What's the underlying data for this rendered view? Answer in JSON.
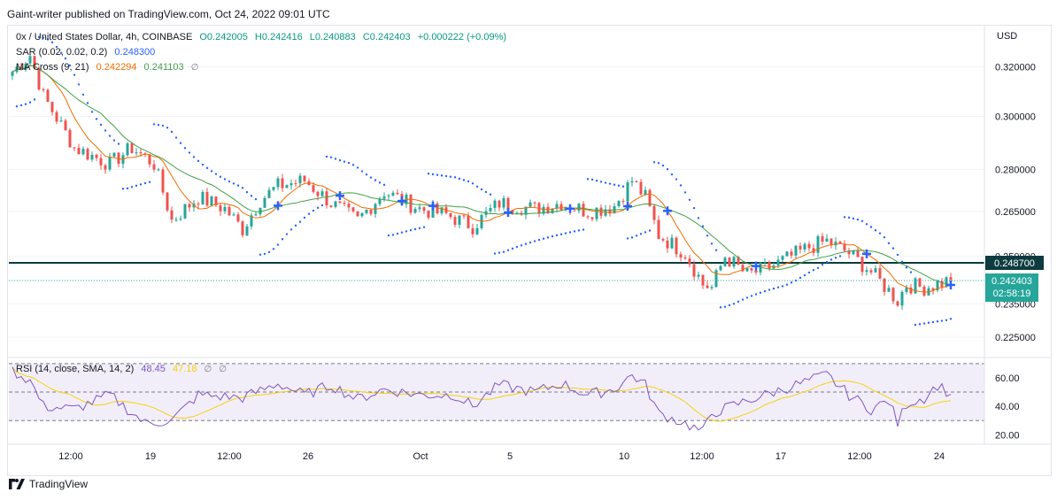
{
  "header": {
    "publisher": "Gaint-writer published on TradingView.com, Oct 24, 2022 09:01 UTC"
  },
  "legend": {
    "symbol": "0x / United States Dollar, 4h, COINBASE",
    "open": "O0.242005",
    "high": "H0.242416",
    "low": "L0.240883",
    "close": "C0.242403",
    "change": "+0.000222 (+0.09%)",
    "sar_label": "SAR (0.02, 0.02, 0.2)",
    "sar_value": "0.248300",
    "ma_label": "MA Cross (9, 21)",
    "ma_fast": "0.242294",
    "ma_slow": "0.241103",
    "rsi_label": "RSI (14, close, SMA, 14, 2)",
    "rsi_value": "48.45",
    "rsi_sma": "47.18"
  },
  "axis": {
    "currency": "USD",
    "y_ticks": [
      "0.320000",
      "0.300000",
      "0.280000",
      "0.265000",
      "0.250000",
      "0.235000",
      "0.225000"
    ],
    "rsi_ticks": [
      "60.00",
      "40.00",
      "20.00"
    ],
    "x_ticks": [
      "12:00",
      "19",
      "12:00",
      "26",
      "Oct",
      "5",
      "12:00",
      "10",
      "12:00",
      "17",
      "12:00",
      "24"
    ]
  },
  "tags": {
    "level": "0.248700",
    "price": "0.242403",
    "countdown": "02:58:19"
  },
  "footer": {
    "brand": "TradingView"
  },
  "colors": {
    "up": "#26a69a",
    "down": "#ef5350",
    "sar": "#2962ff",
    "ma_fast": "#ef6c00",
    "ma_slow": "#43a047",
    "rsi": "#7e57c2",
    "rsi_sma": "#f5d20b",
    "level": "#0d3b3f"
  },
  "chart_data": {
    "type": "candlestick",
    "interval": "4h",
    "y_scale": "log",
    "y_range": [
      0.2196,
      0.3377
    ],
    "horizontal_level": 0.2487,
    "last_price": 0.242403,
    "price_anchors": [
      {
        "bar": 0,
        "price": 0.318
      },
      {
        "bar": 4,
        "price": 0.325
      },
      {
        "bar": 7,
        "price": 0.308
      },
      {
        "bar": 14,
        "price": 0.288
      },
      {
        "bar": 22,
        "price": 0.282
      },
      {
        "bar": 27,
        "price": 0.288
      },
      {
        "bar": 32,
        "price": 0.282
      },
      {
        "bar": 36,
        "price": 0.262
      },
      {
        "bar": 42,
        "price": 0.27
      },
      {
        "bar": 48,
        "price": 0.266
      },
      {
        "bar": 52,
        "price": 0.259
      },
      {
        "bar": 56,
        "price": 0.269
      },
      {
        "bar": 60,
        "price": 0.274
      },
      {
        "bar": 66,
        "price": 0.276
      },
      {
        "bar": 72,
        "price": 0.268
      },
      {
        "bar": 78,
        "price": 0.262
      },
      {
        "bar": 84,
        "price": 0.272
      },
      {
        "bar": 92,
        "price": 0.266
      },
      {
        "bar": 98,
        "price": 0.264
      },
      {
        "bar": 104,
        "price": 0.26
      },
      {
        "bar": 110,
        "price": 0.268
      },
      {
        "bar": 118,
        "price": 0.266
      },
      {
        "bar": 124,
        "price": 0.268
      },
      {
        "bar": 130,
        "price": 0.265
      },
      {
        "bar": 136,
        "price": 0.267
      },
      {
        "bar": 140,
        "price": 0.276
      },
      {
        "bar": 143,
        "price": 0.27
      },
      {
        "bar": 146,
        "price": 0.257
      },
      {
        "bar": 152,
        "price": 0.251
      },
      {
        "bar": 156,
        "price": 0.241
      },
      {
        "bar": 158,
        "price": 0.24
      },
      {
        "bar": 161,
        "price": 0.25
      },
      {
        "bar": 166,
        "price": 0.244
      },
      {
        "bar": 172,
        "price": 0.247
      },
      {
        "bar": 180,
        "price": 0.253
      },
      {
        "bar": 184,
        "price": 0.255
      },
      {
        "bar": 189,
        "price": 0.251
      },
      {
        "bar": 194,
        "price": 0.245
      },
      {
        "bar": 200,
        "price": 0.236
      },
      {
        "bar": 202,
        "price": 0.241
      },
      {
        "bar": 206,
        "price": 0.24
      },
      {
        "bar": 212,
        "price": 0.2424
      }
    ],
    "rsi_anchors": [
      {
        "bar": 0,
        "value": 65
      },
      {
        "bar": 4,
        "value": 58
      },
      {
        "bar": 7,
        "value": 40
      },
      {
        "bar": 14,
        "value": 38
      },
      {
        "bar": 22,
        "value": 48
      },
      {
        "bar": 30,
        "value": 28
      },
      {
        "bar": 36,
        "value": 30
      },
      {
        "bar": 42,
        "value": 48
      },
      {
        "bar": 52,
        "value": 46
      },
      {
        "bar": 60,
        "value": 56
      },
      {
        "bar": 66,
        "value": 48
      },
      {
        "bar": 72,
        "value": 55
      },
      {
        "bar": 78,
        "value": 45
      },
      {
        "bar": 84,
        "value": 52
      },
      {
        "bar": 92,
        "value": 48
      },
      {
        "bar": 100,
        "value": 48
      },
      {
        "bar": 104,
        "value": 40
      },
      {
        "bar": 110,
        "value": 55
      },
      {
        "bar": 118,
        "value": 50
      },
      {
        "bar": 124,
        "value": 56
      },
      {
        "bar": 130,
        "value": 48
      },
      {
        "bar": 136,
        "value": 52
      },
      {
        "bar": 140,
        "value": 62
      },
      {
        "bar": 143,
        "value": 55
      },
      {
        "bar": 146,
        "value": 35
      },
      {
        "bar": 152,
        "value": 28
      },
      {
        "bar": 156,
        "value": 22
      },
      {
        "bar": 158,
        "value": 35
      },
      {
        "bar": 166,
        "value": 44
      },
      {
        "bar": 172,
        "value": 50
      },
      {
        "bar": 180,
        "value": 58
      },
      {
        "bar": 184,
        "value": 62
      },
      {
        "bar": 189,
        "value": 48
      },
      {
        "bar": 194,
        "value": 38
      },
      {
        "bar": 198,
        "value": 44
      },
      {
        "bar": 200,
        "value": 28
      },
      {
        "bar": 202,
        "value": 42
      },
      {
        "bar": 206,
        "value": 46
      },
      {
        "bar": 209,
        "value": 55
      },
      {
        "bar": 212,
        "value": 48.45
      }
    ],
    "rsi_levels": [
      70,
      50,
      30
    ],
    "rsi_range": [
      14,
      73
    ]
  }
}
